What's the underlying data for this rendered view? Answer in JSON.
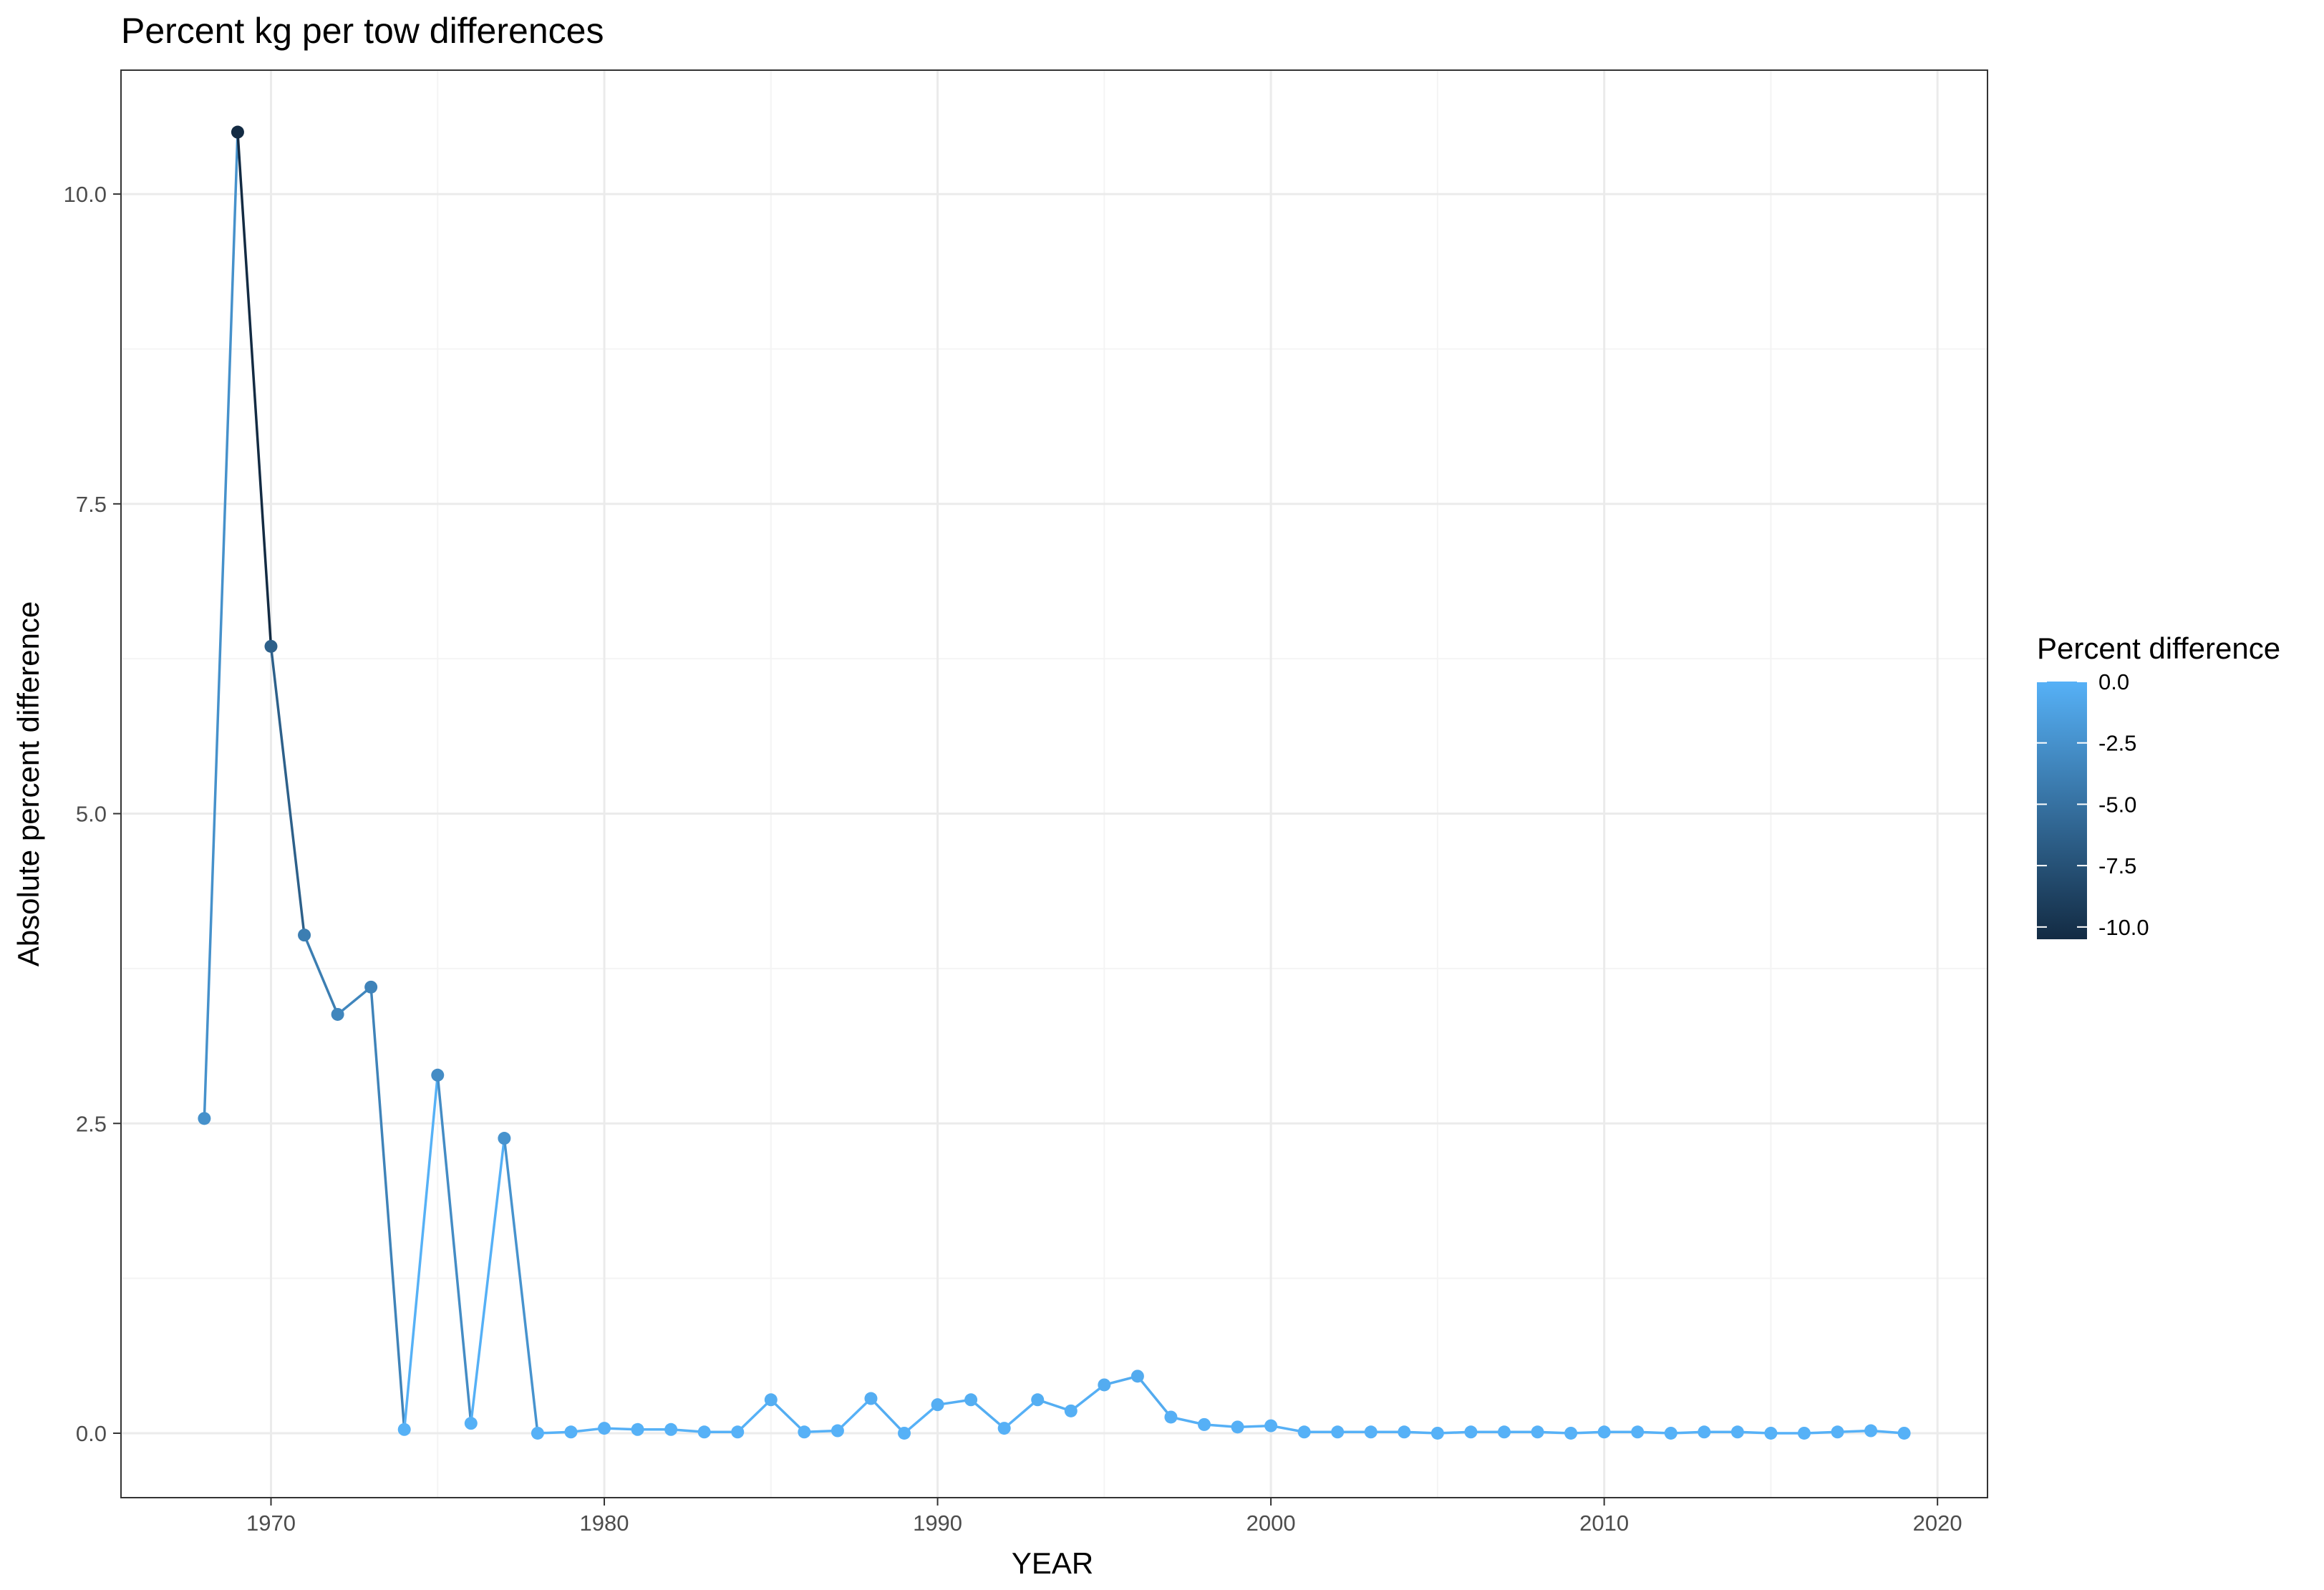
{
  "chart_data": {
    "type": "line",
    "title": "Percent kg per tow differences",
    "xlabel": "YEAR",
    "ylabel": "Absolute percent difference",
    "xlim": [
      1965.5,
      2021.5
    ],
    "ylim": [
      -0.52,
      11.0
    ],
    "x_ticks": [
      1970,
      1980,
      1990,
      2000,
      2010,
      2020
    ],
    "x_tick_labels": [
      "1970",
      "1980",
      "1990",
      "2000",
      "2010",
      "2020"
    ],
    "y_ticks": [
      0,
      2.5,
      5,
      7.5,
      10
    ],
    "y_tick_labels": [
      "0.0",
      "2.5",
      "5.0",
      "7.5",
      "10.0"
    ],
    "grid": true,
    "theme": "bw",
    "series": [
      {
        "x": [
          1968,
          1969,
          1970,
          1971,
          1972,
          1973,
          1974,
          1975,
          1976,
          1977,
          1978,
          1979,
          1980,
          1981,
          1982,
          1983,
          1984,
          1985,
          1986,
          1987,
          1988,
          1989,
          1990,
          1991,
          1992,
          1993,
          1994,
          1995,
          1996,
          1997,
          1998,
          1999,
          2000,
          2001,
          2002,
          2003,
          2004,
          2005,
          2006,
          2007,
          2008,
          2009,
          2010,
          2011,
          2012,
          2013,
          2014,
          2015,
          2016,
          2017,
          2018,
          2019
        ],
        "y": [
          2.54,
          10.5,
          6.35,
          4.02,
          3.38,
          3.6,
          0.03,
          2.89,
          0.08,
          2.38,
          0.0,
          0.01,
          0.04,
          0.03,
          0.03,
          0.01,
          0.01,
          0.27,
          0.01,
          0.02,
          0.28,
          0.0,
          0.23,
          0.27,
          0.04,
          0.27,
          0.18,
          0.39,
          0.46,
          0.13,
          0.07,
          0.05,
          0.06,
          0.01,
          0.01,
          0.01,
          0.01,
          0.0,
          0.01,
          0.01,
          0.01,
          0.0,
          0.01,
          0.01,
          0.0,
          0.01,
          0.01,
          0.0,
          0.0,
          0.01,
          0.02,
          0.0
        ],
        "percent_difference": [
          -2.54,
          -10.5,
          -6.35,
          -4.02,
          -3.38,
          -3.6,
          -0.03,
          -2.89,
          -0.08,
          -2.38,
          0.0,
          -0.01,
          -0.04,
          -0.03,
          -0.03,
          -0.01,
          -0.01,
          -0.27,
          -0.01,
          -0.02,
          -0.28,
          0.0,
          -0.23,
          -0.27,
          -0.04,
          -0.27,
          -0.18,
          -0.39,
          -0.46,
          -0.13,
          -0.07,
          -0.05,
          -0.06,
          -0.01,
          -0.01,
          -0.01,
          -0.01,
          0.0,
          -0.01,
          -0.01,
          -0.01,
          0.0,
          -0.01,
          -0.01,
          0.0,
          -0.01,
          -0.01,
          0.0,
          0.0,
          -0.01,
          -0.02,
          0.0
        ]
      }
    ],
    "legend": {
      "title": "Percent difference",
      "placement": "right",
      "range": [
        -10.5,
        0
      ],
      "ticks": [
        0,
        -2.5,
        -5,
        -7.5,
        -10
      ],
      "tick_labels": [
        "0.0",
        "-2.5",
        "-5.0",
        "-7.5",
        "-10.0"
      ],
      "color_high": "#56B1F7",
      "color_low": "#132B43"
    },
    "colors": {
      "panel_border": "#333333",
      "grid_major": "#ebebeb",
      "grid_minor": "#f4f4f4",
      "tick": "#333333"
    }
  }
}
